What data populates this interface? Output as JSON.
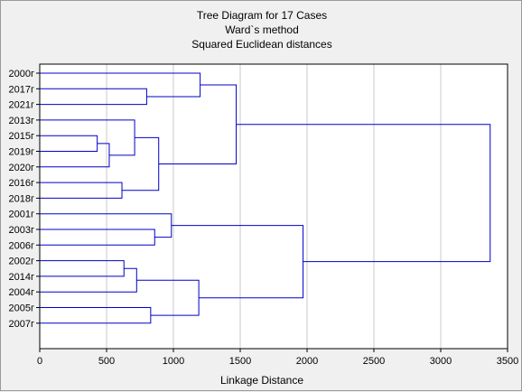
{
  "chart_data": {
    "type": "dendrogram",
    "title": "Tree Diagram for 17 Cases",
    "subtitle_lines": [
      "Ward`s method",
      "Squared Euclidean distances"
    ],
    "xlabel": "Linkage Distance",
    "xlim": [
      0,
      3500
    ],
    "xticks": [
      0,
      500,
      1000,
      1500,
      2000,
      2500,
      3000,
      3500
    ],
    "grid": true,
    "line_color": "#0000c8",
    "grid_color": "#c8c8c8",
    "leaves": [
      "2000г",
      "2017г",
      "2021г",
      "2013г",
      "2015г",
      "2019г",
      "2020г",
      "2016г",
      "2018г",
      "2001г",
      "2003г",
      "2006г",
      "2002г",
      "2014г",
      "2004г",
      "2005г",
      "2007г"
    ],
    "merges": [
      {
        "left": "2015г",
        "right": "2019г",
        "distance": 430
      },
      {
        "left": "2002г",
        "right": "2014г",
        "distance": 630
      },
      {
        "left": "2016г",
        "right": "2018г",
        "distance": 615
      },
      {
        "left": "m0",
        "right": "2020г",
        "distance": 520
      },
      {
        "left": "2013г",
        "right": "m3",
        "distance": 710
      },
      {
        "left": "m1",
        "right": "2004г",
        "distance": 725
      },
      {
        "left": "2017г",
        "right": "2021г",
        "distance": 800
      },
      {
        "left": "2005г",
        "right": "2007г",
        "distance": 830
      },
      {
        "left": "2003г",
        "right": "2006г",
        "distance": 860
      },
      {
        "left": "m4",
        "right": "m2",
        "distance": 890
      },
      {
        "left": "2001г",
        "right": "m8",
        "distance": 985
      },
      {
        "left": "m5",
        "right": "m7",
        "distance": 1190
      },
      {
        "left": "2000г",
        "right": "m6",
        "distance": 1200
      },
      {
        "left": "m12",
        "right": "m9",
        "distance": 1470
      },
      {
        "left": "m10",
        "right": "m11",
        "distance": 1970
      },
      {
        "left": "m13",
        "right": "m14",
        "distance": 3370
      }
    ]
  }
}
